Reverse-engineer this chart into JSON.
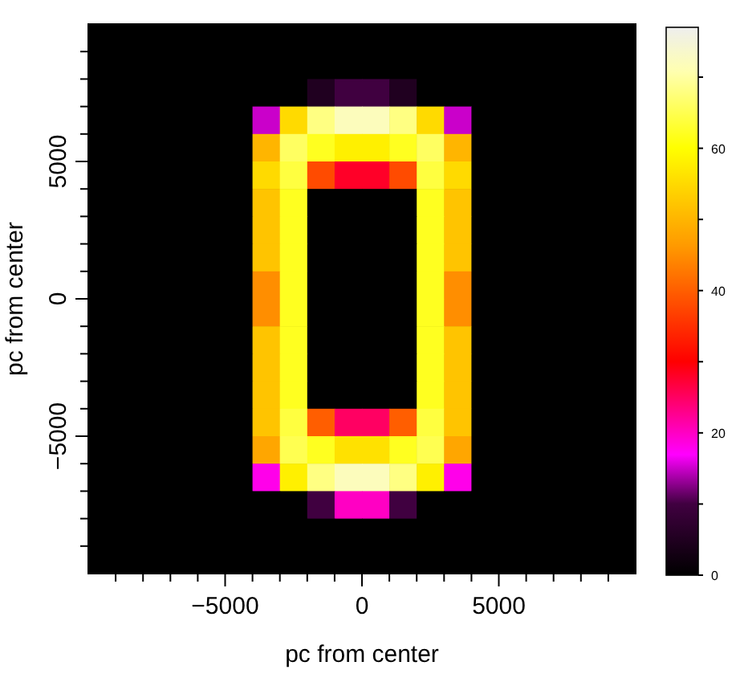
{
  "chart_data": {
    "type": "heatmap",
    "xlabel": "pc from center",
    "ylabel": "pc from center",
    "x": [
      -9500,
      -8500,
      -7500,
      -6500,
      -5500,
      -4500,
      -3500,
      -2500,
      -1500,
      -500,
      500,
      1500,
      2500,
      3500,
      4500,
      5500,
      6500,
      7500,
      8500,
      9500
    ],
    "y": [
      9500,
      8500,
      7500,
      6500,
      5500,
      4500,
      3500,
      2500,
      1500,
      500,
      -500,
      -1500,
      -2500,
      -3500,
      -4500,
      -5500,
      -6500,
      -7500,
      -8500,
      -9500
    ],
    "xlim": [
      -10000,
      10000
    ],
    "ylim": [
      -10000,
      10000
    ],
    "xticks": [
      {
        "value": -9000,
        "label": null
      },
      {
        "value": -8000,
        "label": null
      },
      {
        "value": -7000,
        "label": null
      },
      {
        "value": -6000,
        "label": null
      },
      -5000,
      {
        "value": -4000,
        "label": null
      },
      {
        "value": -3000,
        "label": null
      },
      {
        "value": -2000,
        "label": null
      },
      {
        "value": -1000,
        "label": null
      },
      0,
      {
        "value": 1000,
        "label": null
      },
      {
        "value": 2000,
        "label": null
      },
      {
        "value": 3000,
        "label": null
      },
      {
        "value": 4000,
        "label": null
      },
      5000,
      {
        "value": 6000,
        "label": null
      },
      {
        "value": 7000,
        "label": null
      },
      {
        "value": 8000,
        "label": null
      },
      {
        "value": 9000,
        "label": null
      }
    ],
    "yticks": [
      {
        "value": -9000,
        "label": null
      },
      {
        "value": -8000,
        "label": null
      },
      {
        "value": -7000,
        "label": null
      },
      {
        "value": -6000,
        "label": null
      },
      -5000,
      {
        "value": -4000,
        "label": null
      },
      {
        "value": -3000,
        "label": null
      },
      {
        "value": -2000,
        "label": null
      },
      {
        "value": -1000,
        "label": null
      },
      0,
      {
        "value": 1000,
        "label": null
      },
      {
        "value": 2000,
        "label": null
      },
      {
        "value": 3000,
        "label": null
      },
      {
        "value": 4000,
        "label": null
      },
      5000,
      {
        "value": 6000,
        "label": null
      },
      {
        "value": 7000,
        "label": null
      },
      {
        "value": 8000,
        "label": null
      },
      {
        "value": 9000,
        "label": null
      }
    ],
    "clim": [
      0,
      77
    ],
    "cticks": [
      0,
      {
        "value": 10,
        "label": null
      },
      20,
      {
        "value": 30,
        "label": null
      },
      40,
      {
        "value": 50,
        "label": null
      },
      60,
      {
        "value": 70,
        "label": null
      }
    ],
    "cells": [
      [
        0,
        0,
        0,
        0,
        0,
        0,
        0,
        0,
        0,
        0,
        0,
        0,
        0,
        0,
        0,
        0,
        0,
        0,
        0,
        0
      ],
      [
        0,
        0,
        0,
        0,
        0,
        0,
        0,
        0,
        0,
        0,
        0,
        0,
        0,
        0,
        0,
        0,
        0,
        0,
        0,
        0
      ],
      [
        0,
        0,
        0,
        0,
        0,
        0,
        0,
        0,
        5,
        10,
        10,
        5,
        0,
        0,
        0,
        0,
        0,
        0,
        0,
        0
      ],
      [
        0,
        0,
        0,
        0,
        0,
        0,
        15,
        55,
        68,
        72,
        72,
        68,
        55,
        15,
        0,
        0,
        0,
        0,
        0,
        0
      ],
      [
        0,
        0,
        0,
        0,
        0,
        0,
        50,
        66,
        62,
        58,
        58,
        62,
        66,
        50,
        0,
        0,
        0,
        0,
        0,
        0
      ],
      [
        0,
        0,
        0,
        0,
        0,
        0,
        55,
        64,
        38,
        28,
        28,
        38,
        64,
        55,
        0,
        0,
        0,
        0,
        0,
        0
      ],
      [
        0,
        0,
        0,
        0,
        0,
        0,
        52,
        62,
        0,
        0,
        0,
        0,
        62,
        52,
        0,
        0,
        0,
        0,
        0,
        0
      ],
      [
        0,
        0,
        0,
        0,
        0,
        0,
        52,
        62,
        0,
        0,
        0,
        0,
        62,
        52,
        0,
        0,
        0,
        0,
        0,
        0
      ],
      [
        0,
        0,
        0,
        0,
        0,
        0,
        52,
        62,
        0,
        0,
        0,
        0,
        62,
        52,
        0,
        0,
        0,
        0,
        0,
        0
      ],
      [
        0,
        0,
        0,
        0,
        0,
        0,
        45,
        62,
        0,
        0,
        0,
        0,
        62,
        45,
        0,
        0,
        0,
        0,
        0,
        0
      ],
      [
        0,
        0,
        0,
        0,
        0,
        0,
        45,
        62,
        0,
        0,
        0,
        0,
        62,
        45,
        0,
        0,
        0,
        0,
        0,
        0
      ],
      [
        0,
        0,
        0,
        0,
        0,
        0,
        52,
        62,
        0,
        0,
        0,
        0,
        62,
        52,
        0,
        0,
        0,
        0,
        0,
        0
      ],
      [
        0,
        0,
        0,
        0,
        0,
        0,
        52,
        62,
        0,
        0,
        0,
        0,
        62,
        52,
        0,
        0,
        0,
        0,
        0,
        0
      ],
      [
        0,
        0,
        0,
        0,
        0,
        0,
        52,
        62,
        0,
        0,
        0,
        0,
        62,
        52,
        0,
        0,
        0,
        0,
        0,
        0
      ],
      [
        0,
        0,
        0,
        0,
        0,
        0,
        52,
        64,
        40,
        25,
        25,
        40,
        64,
        52,
        0,
        0,
        0,
        0,
        0,
        0
      ],
      [
        0,
        0,
        0,
        0,
        0,
        0,
        48,
        65,
        62,
        56,
        56,
        62,
        65,
        48,
        0,
        0,
        0,
        0,
        0,
        0
      ],
      [
        0,
        0,
        0,
        0,
        0,
        0,
        18,
        58,
        68,
        72,
        72,
        68,
        58,
        18,
        0,
        0,
        0,
        0,
        0,
        0
      ],
      [
        0,
        0,
        0,
        0,
        0,
        0,
        0,
        0,
        10,
        20,
        20,
        10,
        0,
        0,
        0,
        0,
        0,
        0,
        0,
        0
      ],
      [
        0,
        0,
        0,
        0,
        0,
        0,
        0,
        0,
        0,
        0,
        0,
        0,
        0,
        0,
        0,
        0,
        0,
        0,
        0,
        0
      ],
      [
        0,
        0,
        0,
        0,
        0,
        0,
        0,
        0,
        0,
        0,
        0,
        0,
        0,
        0,
        0,
        0,
        0,
        0,
        0,
        0
      ]
    ]
  }
}
